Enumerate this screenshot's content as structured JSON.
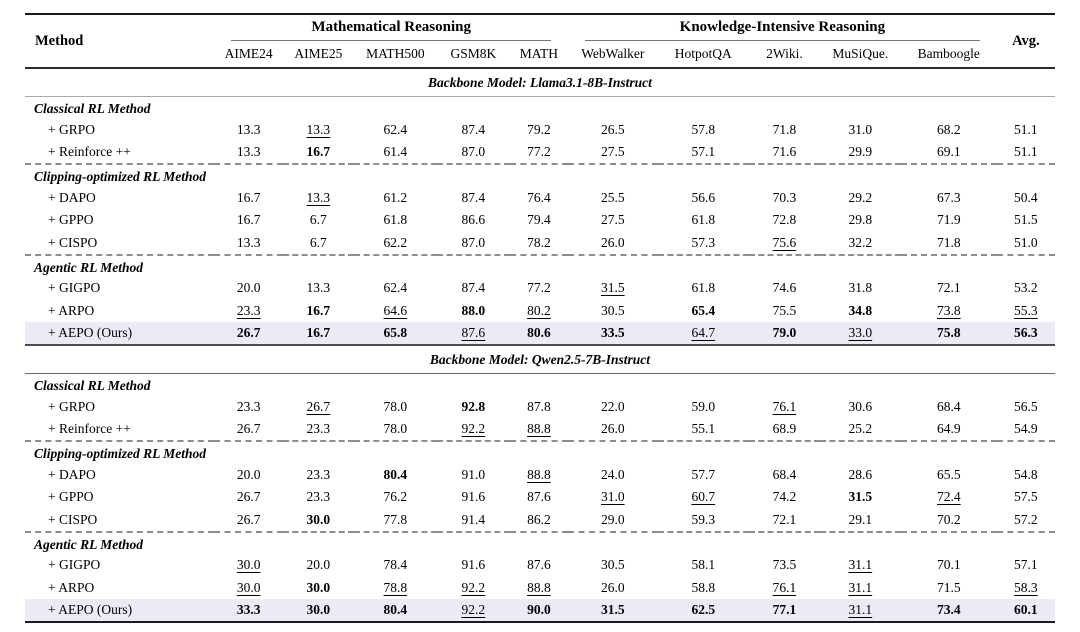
{
  "table": {
    "method_header": "Method",
    "avg_header": "Avg.",
    "col_groups": [
      {
        "label": "Mathematical Reasoning",
        "span": 5
      },
      {
        "label": "Knowledge-Intensive Reasoning",
        "span": 5
      }
    ],
    "sub_headers": [
      "AIME24",
      "AIME25",
      "MATH500",
      "GSM8K",
      "MATH",
      "WebWalker",
      "HotpotQA",
      "2Wiki.",
      "MuSiQue.",
      "Bamboogle"
    ],
    "highlight_color": "#edeaf7",
    "sections": [
      {
        "backbone": "Backbone Model: Llama3.1-8B-Instruct",
        "groups": [
          {
            "group_label": "Classical RL Method",
            "rows": [
              {
                "method": "+ GRPO",
                "values": [
                  "13.3",
                  "13.3",
                  "62.4",
                  "87.4",
                  "79.2",
                  "26.5",
                  "57.8",
                  "71.8",
                  "31.0",
                  "68.2",
                  "51.1"
                ],
                "styles": [
                  "",
                  "u",
                  "",
                  "",
                  "",
                  "",
                  "",
                  "",
                  "",
                  "",
                  ""
                ]
              },
              {
                "method": "+ Reinforce ++",
                "values": [
                  "13.3",
                  "16.7",
                  "61.4",
                  "87.0",
                  "77.2",
                  "27.5",
                  "57.1",
                  "71.6",
                  "29.9",
                  "69.1",
                  "51.1"
                ],
                "styles": [
                  "",
                  "b",
                  "",
                  "",
                  "",
                  "",
                  "",
                  "",
                  "",
                  "",
                  ""
                ]
              }
            ]
          },
          {
            "group_label": "Clipping-optimized RL Method",
            "rows": [
              {
                "method": "+ DAPO",
                "values": [
                  "16.7",
                  "13.3",
                  "61.2",
                  "87.4",
                  "76.4",
                  "25.5",
                  "56.6",
                  "70.3",
                  "29.2",
                  "67.3",
                  "50.4"
                ],
                "styles": [
                  "",
                  "u",
                  "",
                  "",
                  "",
                  "",
                  "",
                  "",
                  "",
                  "",
                  ""
                ]
              },
              {
                "method": "+ GPPO",
                "values": [
                  "16.7",
                  "6.7",
                  "61.8",
                  "86.6",
                  "79.4",
                  "27.5",
                  "61.8",
                  "72.8",
                  "29.8",
                  "71.9",
                  "51.5"
                ],
                "styles": [
                  "",
                  "",
                  "",
                  "",
                  "",
                  "",
                  "",
                  "",
                  "",
                  "",
                  ""
                ]
              },
              {
                "method": "+ CISPO",
                "values": [
                  "13.3",
                  "6.7",
                  "62.2",
                  "87.0",
                  "78.2",
                  "26.0",
                  "57.3",
                  "75.6",
                  "32.2",
                  "71.8",
                  "51.0"
                ],
                "styles": [
                  "",
                  "",
                  "",
                  "",
                  "",
                  "",
                  "",
                  "u",
                  "",
                  "",
                  ""
                ]
              }
            ]
          },
          {
            "group_label": "Agentic RL Method",
            "rows": [
              {
                "method": "+ GIGPO",
                "values": [
                  "20.0",
                  "13.3",
                  "62.4",
                  "87.4",
                  "77.2",
                  "31.5",
                  "61.8",
                  "74.6",
                  "31.8",
                  "72.1",
                  "53.2"
                ],
                "styles": [
                  "",
                  "",
                  "",
                  "",
                  "",
                  "u",
                  "",
                  "",
                  "",
                  "",
                  ""
                ]
              },
              {
                "method": "+ ARPO",
                "values": [
                  "23.3",
                  "16.7",
                  "64.6",
                  "88.0",
                  "80.2",
                  "30.5",
                  "65.4",
                  "75.5",
                  "34.8",
                  "73.8",
                  "55.3"
                ],
                "styles": [
                  "u",
                  "b",
                  "u",
                  "b",
                  "u",
                  "",
                  "b",
                  "",
                  "b",
                  "u",
                  "u"
                ]
              },
              {
                "method": "+ AEPO (Ours)",
                "highlight": true,
                "values": [
                  "26.7",
                  "16.7",
                  "65.8",
                  "87.6",
                  "80.6",
                  "33.5",
                  "64.7",
                  "79.0",
                  "33.0",
                  "75.8",
                  "56.3"
                ],
                "styles": [
                  "b",
                  "b",
                  "b",
                  "u",
                  "b",
                  "b",
                  "u",
                  "b",
                  "u",
                  "b",
                  "b"
                ]
              }
            ]
          }
        ]
      },
      {
        "backbone": "Backbone Model: Qwen2.5-7B-Instruct",
        "groups": [
          {
            "group_label": "Classical RL Method",
            "rows": [
              {
                "method": "+ GRPO",
                "values": [
                  "23.3",
                  "26.7",
                  "78.0",
                  "92.8",
                  "87.8",
                  "22.0",
                  "59.0",
                  "76.1",
                  "30.6",
                  "68.4",
                  "56.5"
                ],
                "styles": [
                  "",
                  "u",
                  "",
                  "b",
                  "",
                  "",
                  "",
                  "u",
                  "",
                  "",
                  ""
                ]
              },
              {
                "method": "+ Reinforce ++",
                "values": [
                  "26.7",
                  "23.3",
                  "78.0",
                  "92.2",
                  "88.8",
                  "26.0",
                  "55.1",
                  "68.9",
                  "25.2",
                  "64.9",
                  "54.9"
                ],
                "styles": [
                  "",
                  "",
                  "",
                  "u",
                  "u",
                  "",
                  "",
                  "",
                  "",
                  "",
                  ""
                ]
              }
            ]
          },
          {
            "group_label": "Clipping-optimized RL Method",
            "rows": [
              {
                "method": "+ DAPO",
                "values": [
                  "20.0",
                  "23.3",
                  "80.4",
                  "91.0",
                  "88.8",
                  "24.0",
                  "57.7",
                  "68.4",
                  "28.6",
                  "65.5",
                  "54.8"
                ],
                "styles": [
                  "",
                  "",
                  "b",
                  "",
                  "u",
                  "",
                  "",
                  "",
                  "",
                  "",
                  ""
                ]
              },
              {
                "method": "+ GPPO",
                "values": [
                  "26.7",
                  "23.3",
                  "76.2",
                  "91.6",
                  "87.6",
                  "31.0",
                  "60.7",
                  "74.2",
                  "31.5",
                  "72.4",
                  "57.5"
                ],
                "styles": [
                  "",
                  "",
                  "",
                  "",
                  "",
                  "u",
                  "u",
                  "",
                  "b",
                  "u",
                  ""
                ]
              },
              {
                "method": "+ CISPO",
                "values": [
                  "26.7",
                  "30.0",
                  "77.8",
                  "91.4",
                  "86.2",
                  "29.0",
                  "59.3",
                  "72.1",
                  "29.1",
                  "70.2",
                  "57.2"
                ],
                "styles": [
                  "",
                  "b",
                  "",
                  "",
                  "",
                  "",
                  "",
                  "",
                  "",
                  "",
                  ""
                ]
              }
            ]
          },
          {
            "group_label": "Agentic RL Method",
            "rows": [
              {
                "method": "+ GIGPO",
                "values": [
                  "30.0",
                  "20.0",
                  "78.4",
                  "91.6",
                  "87.6",
                  "30.5",
                  "58.1",
                  "73.5",
                  "31.1",
                  "70.1",
                  "57.1"
                ],
                "styles": [
                  "u",
                  "",
                  "",
                  "",
                  "",
                  "",
                  "",
                  "",
                  "u",
                  "",
                  ""
                ]
              },
              {
                "method": "+ ARPO",
                "values": [
                  "30.0",
                  "30.0",
                  "78.8",
                  "92.2",
                  "88.8",
                  "26.0",
                  "58.8",
                  "76.1",
                  "31.1",
                  "71.5",
                  "58.3"
                ],
                "styles": [
                  "u",
                  "b",
                  "u",
                  "u",
                  "u",
                  "",
                  "",
                  "u",
                  "u",
                  "",
                  "u"
                ]
              },
              {
                "method": "+ AEPO (Ours)",
                "highlight": true,
                "values": [
                  "33.3",
                  "30.0",
                  "80.4",
                  "92.2",
                  "90.0",
                  "31.5",
                  "62.5",
                  "77.1",
                  "31.1",
                  "73.4",
                  "60.1"
                ],
                "styles": [
                  "b",
                  "b",
                  "b",
                  "u",
                  "b",
                  "b",
                  "b",
                  "b",
                  "u",
                  "b",
                  "b"
                ]
              }
            ]
          }
        ]
      }
    ]
  }
}
